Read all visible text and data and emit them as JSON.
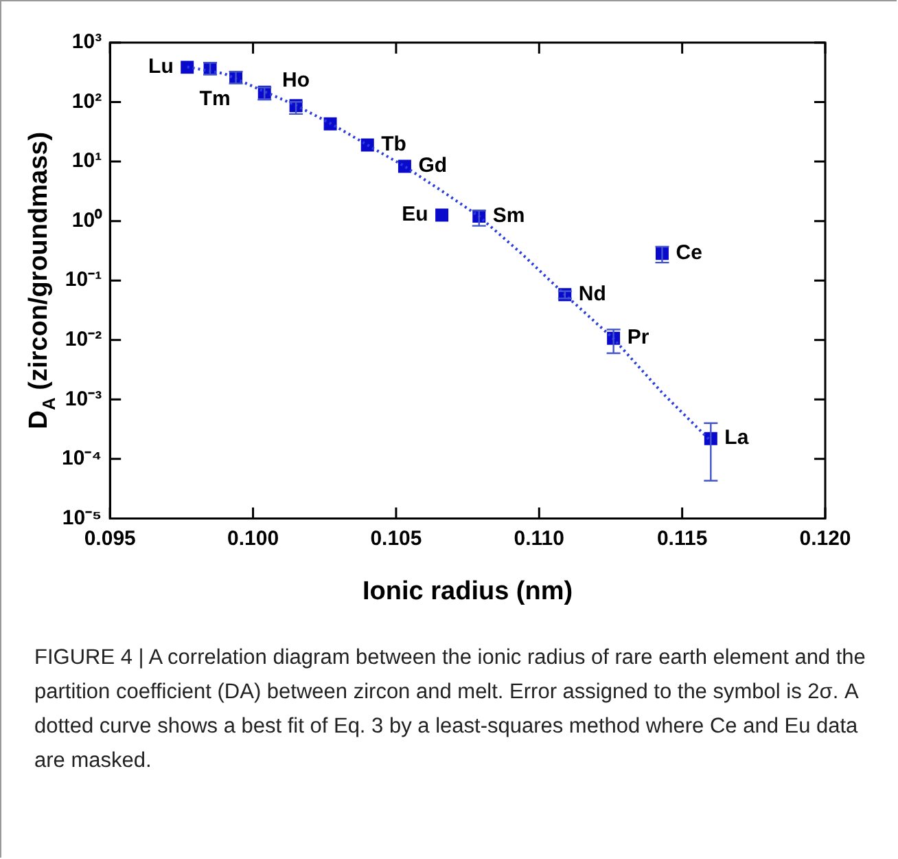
{
  "chart_data": {
    "type": "scatter",
    "xlabel": "Ionic radius (nm)",
    "ylabel": "D$_{A}$ (zircon/groundmass)",
    "annotations": [
      {
        "text": "Lu",
        "x": 0.0977,
        "y": 385
      },
      {
        "text": "Tm",
        "x": 0.0994,
        "y": 260
      },
      {
        "text": "Ho",
        "x": 0.1015,
        "y": 87
      },
      {
        "text": "Tb",
        "x": 0.104,
        "y": 19
      },
      {
        "text": "Gd",
        "x": 0.1053,
        "y": 8.3
      },
      {
        "text": "Eu",
        "x": 0.1066,
        "y": 1.26
      },
      {
        "text": "Sm",
        "x": 0.1079,
        "y": 1.21
      },
      {
        "text": "Nd",
        "x": 0.1109,
        "y": 0.058
      },
      {
        "text": "Pr",
        "x": 0.1126,
        "y": 0.0107
      },
      {
        "text": "Ce",
        "x": 0.1143,
        "y": 0.285
      },
      {
        "text": "La",
        "x": 0.116,
        "y": 0.00022
      },
      "FIGURE 4 | A correlation diagram between the ionic radius of rare earth element and the partition coefficient (DA) between zircon and melt. Error assigned to the symbol is 2σ. A dotted curve shows a best fit of Eq. 3 by a least-squares method where Ce and Eu data are masked."
    ],
    "series": [
      {
        "type": "scatter",
        "color": "#0a0acc",
        "marker": "square",
        "x": [
          0.0977,
          0.0985,
          0.0994,
          0.1004,
          0.1015,
          0.1027,
          0.104,
          0.1053,
          0.1066,
          0.1079,
          0.1109,
          0.1126,
          0.1143,
          0.116
        ],
        "values": [
          385,
          367,
          260,
          146,
          87,
          43,
          19,
          8.3,
          1.26,
          1.21,
          0.058,
          0.0107,
          0.285,
          0.00022
        ],
        "errors": [
          null,
          [
            290,
            460
          ],
          [
            205,
            325
          ],
          [
            110,
            176
          ],
          [
            63,
            101
          ],
          null,
          null,
          null,
          null,
          [
            0.83,
            1.5
          ],
          [
            0.05,
            0.066
          ],
          [
            0.006,
            0.015
          ],
          [
            0.2,
            0.37
          ],
          [
            4.3e-05,
            0.0004
          ]
        ]
      },
      {
        "type": "line",
        "color": "#2a3ee0",
        "marker": "none",
        "line_style": "dotted",
        "x": [
          0.0977,
          0.099,
          0.1004,
          0.1015,
          0.1027,
          0.104,
          0.1053,
          0.1066,
          0.1079,
          0.1094,
          0.1109,
          0.1126,
          0.1143,
          0.116
        ],
        "values": [
          390,
          300,
          150,
          88,
          44,
          19,
          8.3,
          3.2,
          1.2,
          0.28,
          0.058,
          0.0105,
          0.0013,
          0.0002
        ]
      }
    ],
    "xlim": [
      0.095,
      0.12
    ],
    "xticks": [
      {
        "value": 0.095,
        "label": "0.095"
      },
      {
        "value": 0.1,
        "label": "0.100"
      },
      {
        "value": 0.105,
        "label": "0.105"
      },
      {
        "value": 0.11,
        "label": "0.110"
      },
      {
        "value": 0.115,
        "label": "0.115"
      },
      {
        "value": 0.12,
        "label": "0.120"
      }
    ],
    "log": "y",
    "ylim": [
      1e-05,
      1000
    ],
    "yticks": [
      {
        "value": 1e-05,
        "label": "10⁻⁵"
      },
      {
        "value": 0.0001,
        "label": "10⁻⁴"
      },
      {
        "value": 0.001,
        "label": "10⁻³"
      },
      {
        "value": 0.01,
        "label": "10⁻²"
      },
      {
        "value": 0.1,
        "label": "10⁻¹"
      },
      {
        "value": 1,
        "label": "10⁰"
      },
      {
        "value": 10,
        "label": "10¹"
      },
      {
        "value": 100,
        "label": "10²"
      },
      {
        "value": 1000,
        "label": "10³"
      }
    ],
    "grid": false,
    "legend": false
  }
}
